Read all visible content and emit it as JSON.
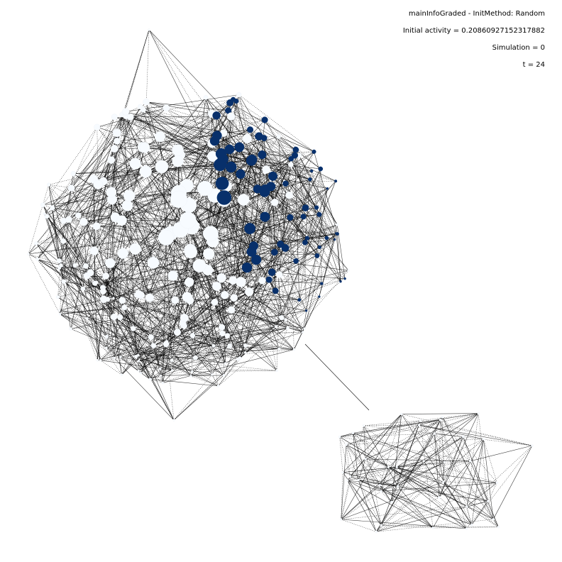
{
  "annotations": {
    "title": "mainInfoGraded - InitMethod: Random",
    "initial_activity": "Initial activity = 0.20860927152317882",
    "simulation": "Simulation = 0",
    "time": "t = 24"
  }
}
